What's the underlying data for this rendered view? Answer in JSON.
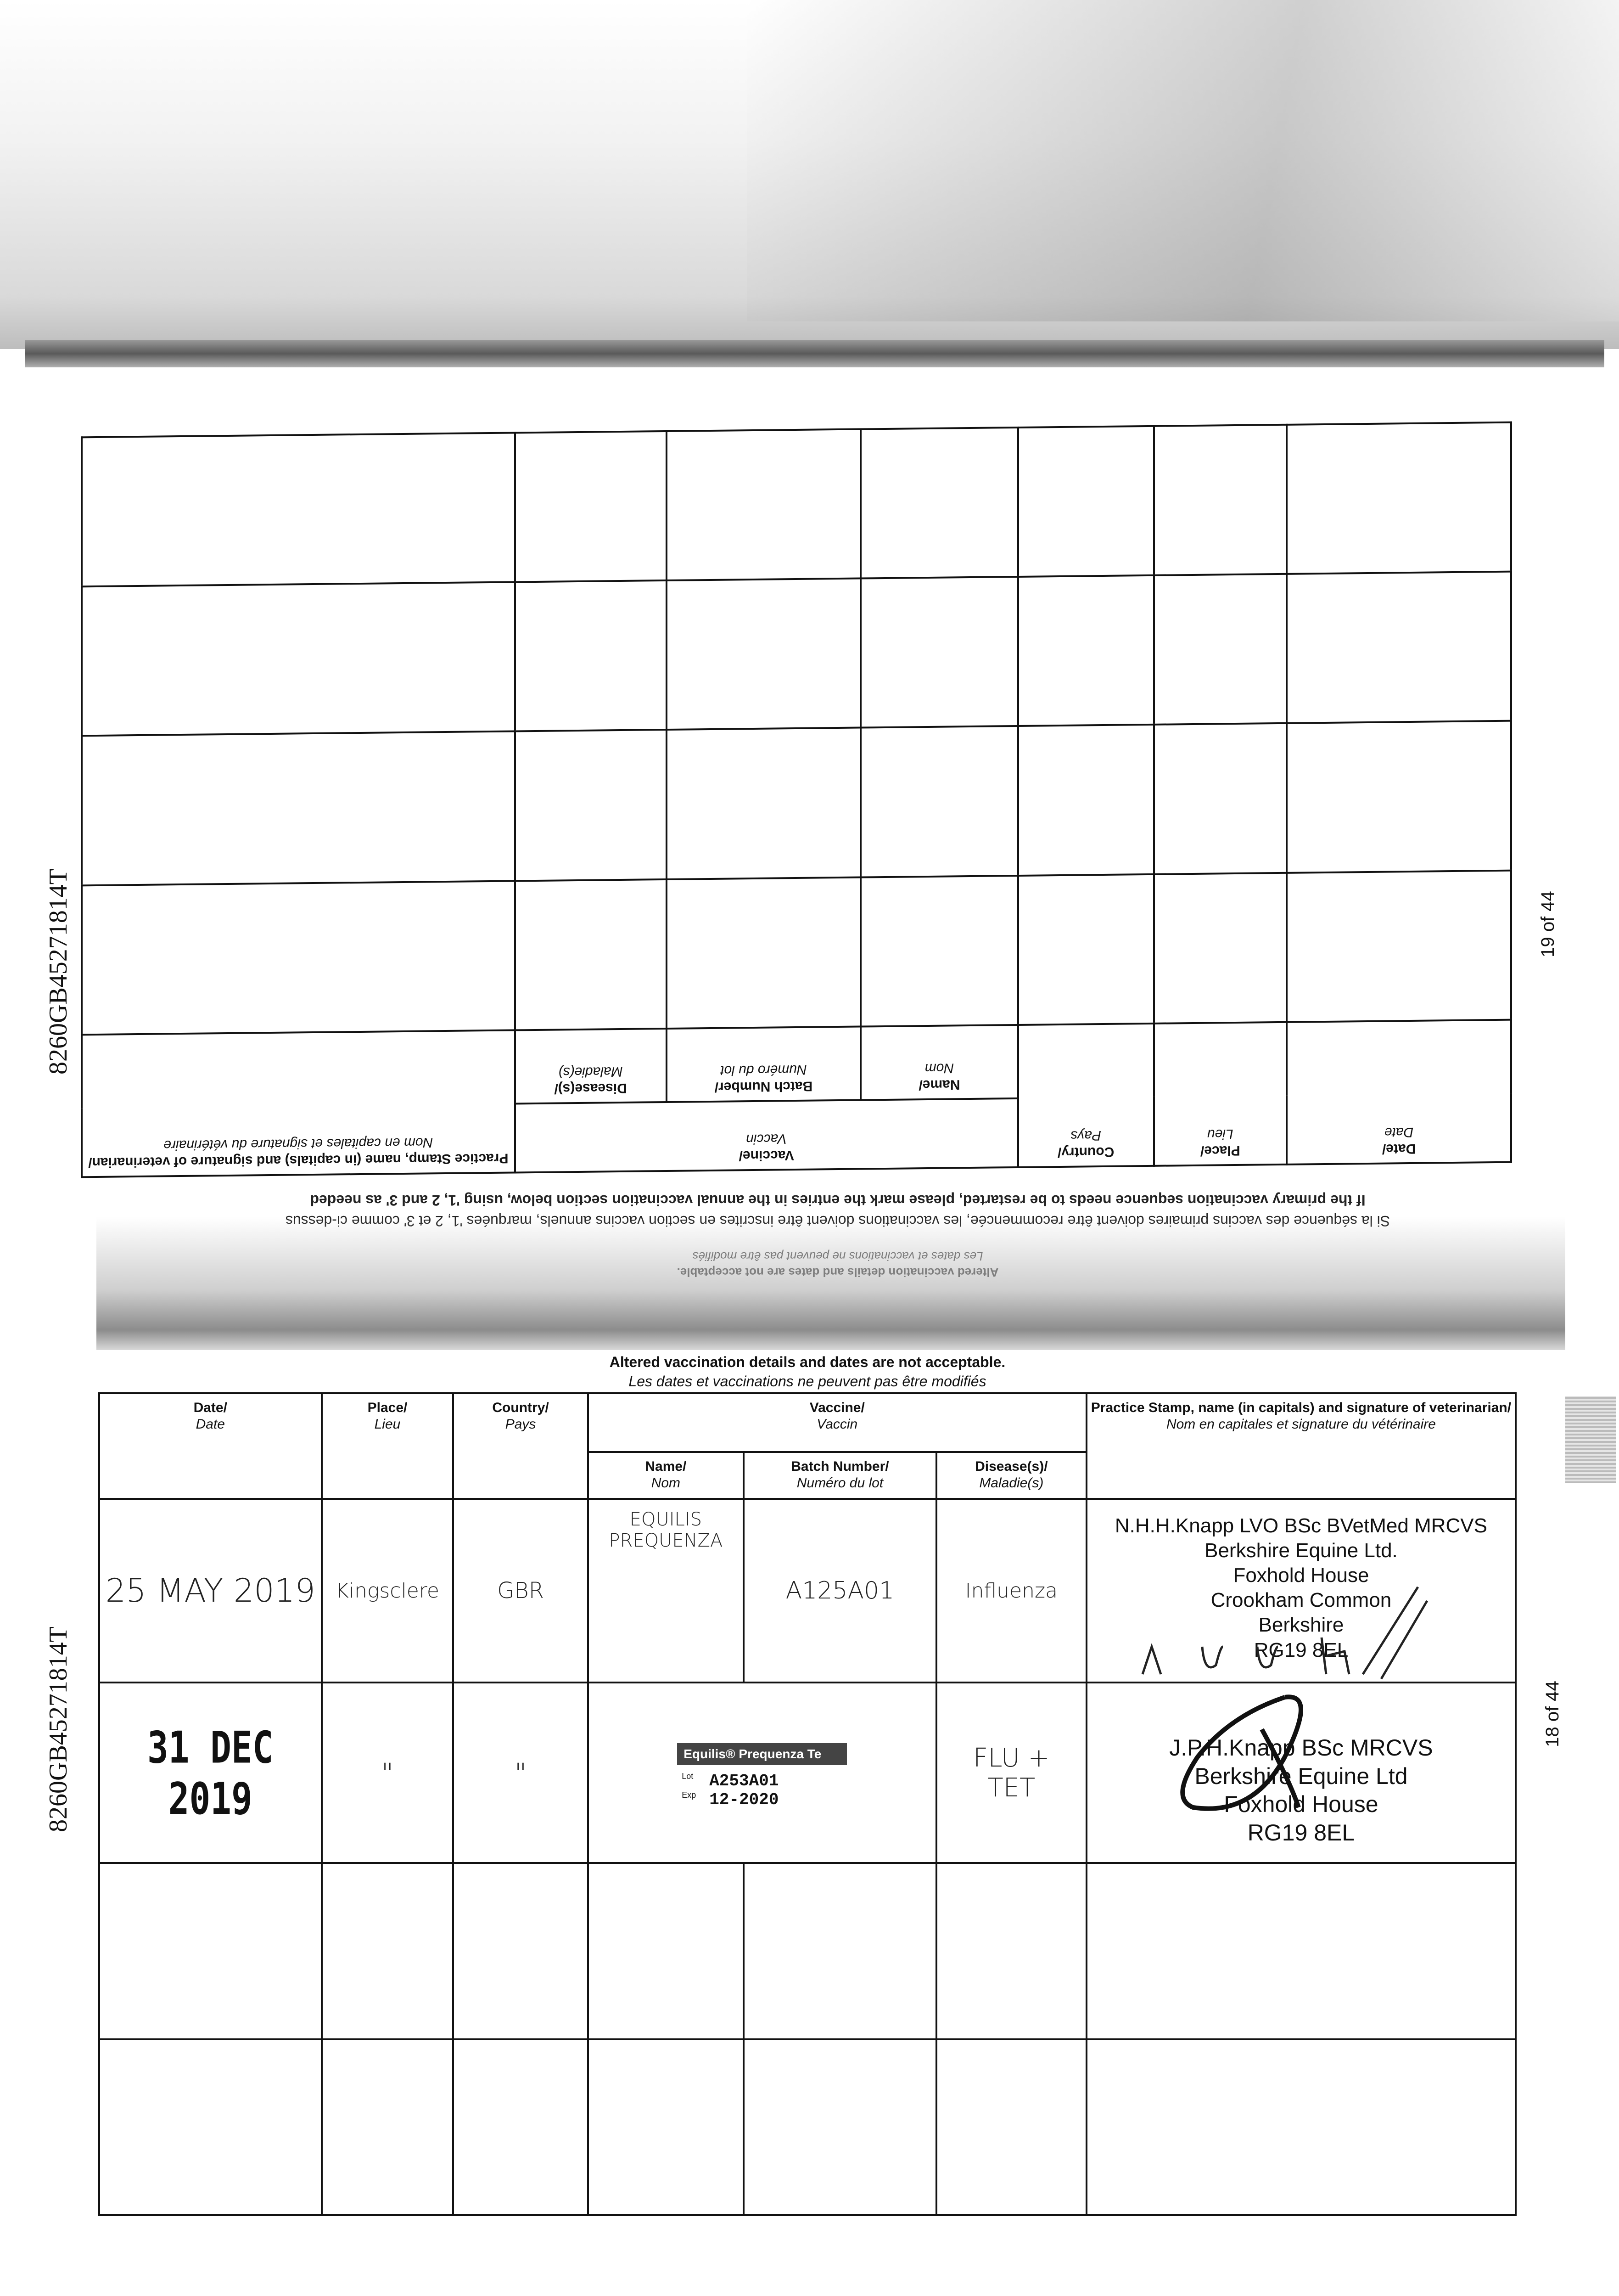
{
  "document_id": "8260GB45271814T",
  "upper_page": {
    "page_label": "19 of 44",
    "headers": {
      "date": "Date/",
      "date_fr": "Date",
      "place": "Place/",
      "place_fr": "Lieu",
      "country": "Country/",
      "country_fr": "Pays",
      "vaccine": "Vaccine/",
      "vaccine_fr": "Vaccin",
      "name": "Name/",
      "name_fr": "Nom",
      "batch": "Batch Number/",
      "batch_fr": "Numéro du lot",
      "disease": "Disease(s)/",
      "disease_fr": "Maladie(s)",
      "stamp": "Practice Stamp, name (in capitals) and signature of veterinarian/",
      "stamp_fr": "Nom en capitales et signature du vétérinaire"
    },
    "instructions": "If the primary vaccination sequence needs to be restarted, please mark the entries in the annual vaccination section below, using '1, 2 and 3' as needed",
    "instructions_fr": "Si la séquence des vaccins primaires doivent être recommencée, les vaccinations doivent être inscrites en section vaccins annuels, marquées '1, 2 et 3' comme ci-dessus",
    "notice": "Altered vaccination details and dates are not acceptable.",
    "notice_fr": "Les dates et vaccinations ne peuvent pas être modifiés"
  },
  "lower_page": {
    "page_label": "18 of 44",
    "notice": "Altered vaccination details and dates are not acceptable.",
    "notice_fr": "Les dates et vaccinations ne peuvent pas être modifiés",
    "headers": {
      "date": "Date/",
      "date_fr": "Date",
      "place": "Place/",
      "place_fr": "Lieu",
      "country": "Country/",
      "country_fr": "Pays",
      "vaccine": "Vaccine/",
      "vaccine_fr": "Vaccin",
      "name": "Name/",
      "name_fr": "Nom",
      "batch": "Batch Number/",
      "batch_fr": "Numéro du lot",
      "disease": "Disease(s)/",
      "disease_fr": "Maladie(s)",
      "stamp": "Practice Stamp, name (in capitals) and signature of veterinarian/",
      "stamp_fr": "Nom en capitales et signature du vétérinaire"
    },
    "rows": [
      {
        "date": "25 MAY 2019",
        "place": "Kingsclere",
        "country": "GBR",
        "name": "EQUILIS PREQUENZA",
        "batch": "A125A01",
        "disease": "Influenza",
        "stamp": [
          "N.H.H.Knapp LVO BSc BVetMed MRCVS",
          "Berkshire Equine Ltd.",
          "Foxhold House",
          "Crookham Common",
          "Berkshire",
          "RG19 8EL"
        ],
        "signature": "N. H. H."
      },
      {
        "date": "31 DEC 2019",
        "place": "\"",
        "country": "\"",
        "label": {
          "product": "Equilis® Prequenza Te",
          "lot_key": "Lot",
          "lot": "A253A01",
          "exp_key": "Exp",
          "exp": "12-2020"
        },
        "disease": "FLU + TET",
        "stamp": [
          "J.P.H.Knapp BSc MRCVS",
          "Berkshire Equine Ltd",
          "Foxhold House",
          "RG19 8EL"
        ]
      }
    ]
  }
}
